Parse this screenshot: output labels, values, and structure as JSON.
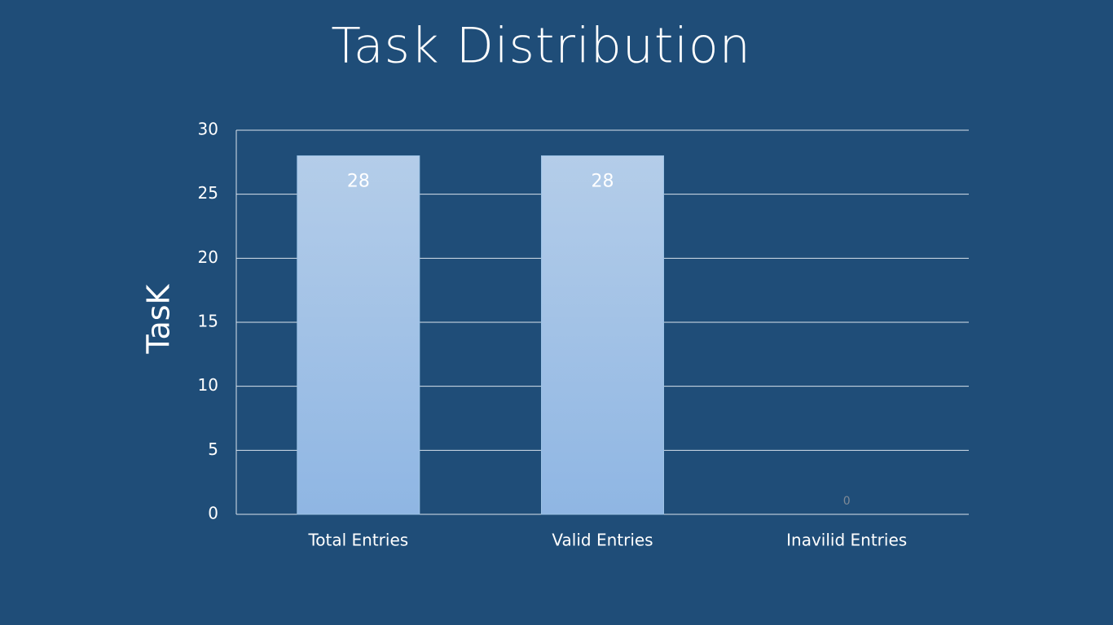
{
  "chart_data": {
    "type": "bar",
    "title": "Task Distribution",
    "y_label": "TasK",
    "categories": [
      "Total Entries",
      "Valid Entries",
      "Inavilid Entries"
    ],
    "values": [
      28,
      28,
      0
    ],
    "gradient": [
      "#b4cde9",
      "#8fb6e3"
    ],
    "ylim": [
      0,
      30
    ],
    "yticks": [
      0,
      5,
      10,
      15,
      20,
      25,
      30
    ],
    "grid": true
  }
}
